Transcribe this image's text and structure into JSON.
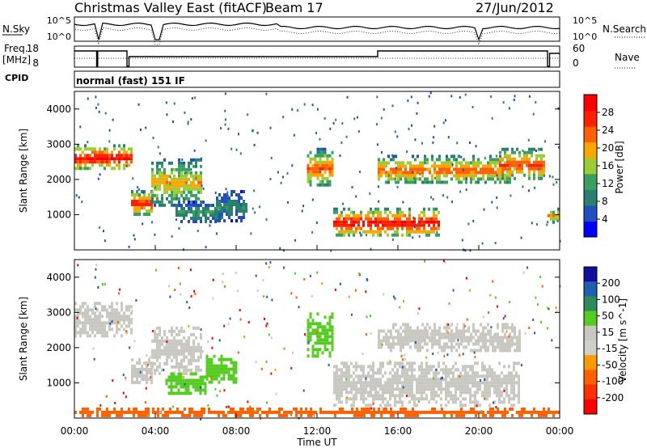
{
  "header": {
    "station": "Christmas Valley East (fitACF)",
    "beam": "Beam 17",
    "date": "27/Jun/2012"
  },
  "top_panels": {
    "nsky_label": "N.Sky",
    "nsky_ticks": [
      "10^5",
      "10^0"
    ],
    "nsearch_label": "N.Search",
    "nsearch_ticks": [
      "10^5",
      "10^0"
    ],
    "freq_label": "Freq.",
    "freq_unit": "[MHz]",
    "freq_ticks": [
      "18",
      "8"
    ],
    "nave_label": "Nave",
    "nave_ticks": [
      "60",
      "0"
    ],
    "cpid_label": "CPID",
    "cpid_value": "normal (fast) 151 IF"
  },
  "colors": {
    "power_scale": [
      "#0000ff",
      "#2050c0",
      "#2a8070",
      "#3aa060",
      "#9acd32",
      "#ffa500",
      "#ff6000",
      "#ff2000",
      "#ff0000"
    ],
    "velocity_scale": [
      "#1010a0",
      "#1f5fb0",
      "#2e8b57",
      "#55cc22",
      "#c8c8c0",
      "#d0d0c8",
      "#ff9900",
      "#ff6000",
      "#ff3000",
      "#ff0000"
    ]
  },
  "chart_data": [
    {
      "type": "heatmap",
      "panel": "power",
      "ylabel": "Slant Range [km]",
      "yticks": [
        "1000",
        "2000",
        "3000",
        "4000"
      ],
      "ylim": [
        0,
        4500
      ],
      "colorbar_label": "Power [dB]",
      "colorbar_ticks": [
        "4",
        "8",
        "12",
        "16",
        "20",
        "24",
        "28"
      ],
      "colorbar_range": [
        0,
        32
      ],
      "x_range_hours": [
        0,
        24
      ],
      "echo_regions": [
        {
          "t0": 0.0,
          "t1": 2.8,
          "r0": 2300,
          "r1": 3000,
          "peak_db": 30
        },
        {
          "t0": 2.8,
          "t1": 3.8,
          "r0": 1000,
          "r1": 1700,
          "peak_db": 28
        },
        {
          "t0": 3.8,
          "t1": 6.2,
          "r0": 1300,
          "r1": 2600,
          "peak_db": 20
        },
        {
          "t0": 5.0,
          "t1": 7.2,
          "r0": 800,
          "r1": 1400,
          "peak_db": 12
        },
        {
          "t0": 7.0,
          "t1": 8.5,
          "r0": 800,
          "r1": 1700,
          "peak_db": 10
        },
        {
          "t0": 11.5,
          "t1": 12.8,
          "r0": 1800,
          "r1": 2900,
          "peak_db": 24
        },
        {
          "t0": 12.8,
          "t1": 18.0,
          "r0": 400,
          "r1": 1200,
          "peak_db": 30
        },
        {
          "t0": 15.0,
          "t1": 21.5,
          "r0": 1900,
          "r1": 2700,
          "peak_db": 24
        },
        {
          "t0": 21.0,
          "t1": 23.2,
          "r0": 2000,
          "r1": 2900,
          "peak_db": 26
        },
        {
          "t0": 23.4,
          "t1": 24.0,
          "r0": 800,
          "r1": 1200,
          "peak_db": 22
        }
      ]
    },
    {
      "type": "heatmap",
      "panel": "velocity",
      "ylabel": "Slant Range [km]",
      "yticks": [
        "1000",
        "2000",
        "3000",
        "4000"
      ],
      "ylim": [
        0,
        4500
      ],
      "colorbar_label": "Velocity [m s^-1]",
      "colorbar_ticks": [
        "200",
        "100",
        "50",
        "15",
        "-15",
        "-50",
        "-100",
        "-200"
      ],
      "x_range_hours": [
        0,
        24
      ],
      "xticks": [
        "00:00",
        "04:00",
        "08:00",
        "12:00",
        "16:00",
        "20:00",
        "00:00"
      ],
      "xlabel": "Time UT",
      "echo_regions": [
        {
          "t0": 0.0,
          "t1": 2.8,
          "r0": 2300,
          "r1": 3300,
          "velocity": 0
        },
        {
          "t0": 2.8,
          "t1": 3.8,
          "r0": 1000,
          "r1": 1700,
          "velocity": 0
        },
        {
          "t0": 3.8,
          "t1": 6.2,
          "r0": 1300,
          "r1": 2600,
          "velocity": 0
        },
        {
          "t0": 4.5,
          "t1": 6.5,
          "r0": 700,
          "r1": 1300,
          "velocity": 60
        },
        {
          "t0": 6.5,
          "t1": 8.0,
          "r0": 1000,
          "r1": 1800,
          "velocity": 55
        },
        {
          "t0": 11.5,
          "t1": 12.8,
          "r0": 1800,
          "r1": 3000,
          "velocity": 40
        },
        {
          "t0": 12.8,
          "t1": 22.0,
          "r0": 400,
          "r1": 1600,
          "velocity": 0
        },
        {
          "t0": 15.0,
          "t1": 22.0,
          "r0": 1900,
          "r1": 2700,
          "velocity": 0
        },
        {
          "t0": 0.0,
          "t1": 24.0,
          "r0": 100,
          "r1": 300,
          "velocity": -60
        }
      ]
    }
  ]
}
